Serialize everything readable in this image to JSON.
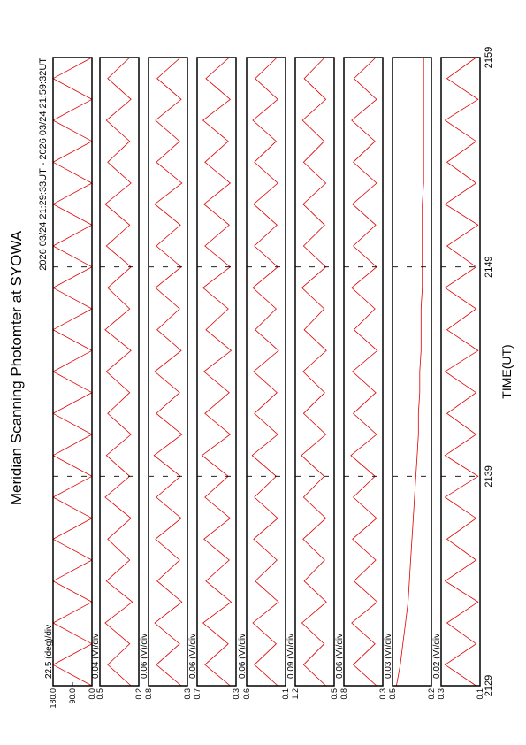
{
  "title": "Meridian Scanning Photomter at SYOWA",
  "time_range": "2026 03/24 21:29:33UT - 2026 03/24 21:59:32UT",
  "xlabel": "TIME(UT)",
  "x": [
    2129,
    2130,
    2131,
    2132,
    2133,
    2134,
    2135,
    2136,
    2137,
    2138,
    2139,
    2140,
    2141,
    2142,
    2143,
    2144,
    2145,
    2146,
    2147,
    2148,
    2149,
    2150,
    2151,
    2152,
    2153,
    2154,
    2155,
    2156,
    2157,
    2158,
    2159
  ],
  "xlim": [
    2129,
    2159
  ],
  "xticks": [
    2129,
    2139,
    2149,
    2159
  ],
  "chart_data": [
    {
      "type": "line",
      "scale": "22.5 (deg)/div",
      "color": "#e00000",
      "ylim": [
        0,
        180
      ],
      "yticks": [
        {
          "value": 180,
          "label": "180.0"
        },
        {
          "value": 90,
          "label": "90.0"
        },
        {
          "value": 0,
          "label": "0.0"
        }
      ],
      "values": [
        0,
        180,
        0,
        180,
        0,
        180,
        0,
        180,
        0,
        180,
        0,
        180,
        0,
        180,
        0,
        180,
        0,
        180,
        0,
        180,
        0,
        180,
        0,
        180,
        0,
        180,
        0,
        180,
        0,
        180,
        0
      ]
    },
    {
      "type": "line",
      "scale": "0.04 (V)/div",
      "color": "#e00000",
      "ylim": [
        0.2,
        0.5
      ],
      "yticks": [
        0.5,
        0.2
      ],
      "values": [
        0.26,
        0.44,
        0.27,
        0.46,
        0.25,
        0.45,
        0.27,
        0.44,
        0.26,
        0.46,
        0.27,
        0.45,
        0.26,
        0.44,
        0.27,
        0.45,
        0.26,
        0.46,
        0.27,
        0.44,
        0.26,
        0.45,
        0.27,
        0.46,
        0.26,
        0.44,
        0.27,
        0.45,
        0.26,
        0.44,
        0.27
      ]
    },
    {
      "type": "line",
      "scale": "0.06 (V)/div",
      "color": "#e00000",
      "ylim": [
        0.3,
        0.8
      ],
      "yticks": [
        0.8,
        0.3
      ],
      "values": [
        0.38,
        0.7,
        0.4,
        0.72,
        0.37,
        0.69,
        0.4,
        0.71,
        0.38,
        0.7,
        0.39,
        0.73,
        0.37,
        0.7,
        0.4,
        0.72,
        0.38,
        0.69,
        0.4,
        0.71,
        0.38,
        0.7,
        0.39,
        0.72,
        0.37,
        0.7,
        0.4,
        0.71,
        0.38,
        0.69,
        0.39
      ]
    },
    {
      "type": "line",
      "scale": "0.06 (V)/div",
      "color": "#e00000",
      "ylim": [
        0.3,
        0.7
      ],
      "yticks": [
        0.7,
        0.3
      ],
      "values": [
        0.36,
        0.62,
        0.38,
        0.64,
        0.35,
        0.61,
        0.37,
        0.63,
        0.36,
        0.62,
        0.38,
        0.65,
        0.36,
        0.62,
        0.37,
        0.63,
        0.35,
        0.61,
        0.38,
        0.64,
        0.36,
        0.62,
        0.37,
        0.63,
        0.36,
        0.62,
        0.38,
        0.64,
        0.36,
        0.61,
        0.37
      ]
    },
    {
      "type": "line",
      "scale": "0.06 (V)/div",
      "color": "#e00000",
      "ylim": [
        0.1,
        0.6
      ],
      "yticks": [
        0.6,
        0.1
      ],
      "values": [
        0.2,
        0.5,
        0.22,
        0.52,
        0.19,
        0.49,
        0.21,
        0.51,
        0.2,
        0.5,
        0.22,
        0.53,
        0.2,
        0.5,
        0.21,
        0.51,
        0.19,
        0.49,
        0.22,
        0.52,
        0.2,
        0.5,
        0.21,
        0.51,
        0.2,
        0.5,
        0.22,
        0.52,
        0.2,
        0.49,
        0.21
      ]
    },
    {
      "type": "line",
      "scale": "0.09 (V)/div",
      "color": "#e00000",
      "ylim": [
        0.5,
        1.2
      ],
      "yticks": [
        1.2,
        0.5
      ],
      "values": [
        0.65,
        1.05,
        0.68,
        1.08,
        0.64,
        1.04,
        0.67,
        1.06,
        0.65,
        1.05,
        0.68,
        1.09,
        0.65,
        1.05,
        0.67,
        1.06,
        0.64,
        1.04,
        0.68,
        1.08,
        0.65,
        1.05,
        0.67,
        1.06,
        0.65,
        1.05,
        0.68,
        1.07,
        0.65,
        1.04,
        0.67
      ]
    },
    {
      "type": "line",
      "scale": "0.06 (V)/div",
      "color": "#e00000",
      "ylim": [
        0.3,
        0.8
      ],
      "yticks": [
        0.8,
        0.3
      ],
      "values": [
        0.38,
        0.68,
        0.4,
        0.7,
        0.37,
        0.67,
        0.39,
        0.69,
        0.38,
        0.68,
        0.4,
        0.71,
        0.38,
        0.68,
        0.39,
        0.69,
        0.37,
        0.67,
        0.4,
        0.7,
        0.38,
        0.68,
        0.39,
        0.69,
        0.38,
        0.68,
        0.4,
        0.7,
        0.38,
        0.67,
        0.39
      ]
    },
    {
      "type": "line",
      "scale": "0.03 (V)/div",
      "color": "#e00000",
      "ylim": [
        0.2,
        0.5
      ],
      "yticks": [
        0.5,
        0.2
      ],
      "values": [
        0.47,
        0.44,
        0.42,
        0.4,
        0.38,
        0.37,
        0.36,
        0.35,
        0.34,
        0.33,
        0.32,
        0.31,
        0.3,
        0.3,
        0.29,
        0.29,
        0.28,
        0.28,
        0.28,
        0.27,
        0.27,
        0.27,
        0.27,
        0.27,
        0.26,
        0.26,
        0.26,
        0.26,
        0.26,
        0.26,
        0.26
      ]
    },
    {
      "type": "line",
      "scale": "0.02 (V)/div",
      "color": "#e00000",
      "ylim": [
        0.1,
        0.3
      ],
      "yticks": [
        0.3,
        0.1
      ],
      "values": [
        0.12,
        0.28,
        0.12,
        0.27,
        0.11,
        0.28,
        0.12,
        0.27,
        0.12,
        0.28,
        0.11,
        0.28,
        0.12,
        0.27,
        0.12,
        0.28,
        0.11,
        0.27,
        0.12,
        0.28,
        0.12,
        0.27,
        0.11,
        0.28,
        0.12,
        0.27,
        0.12,
        0.28,
        0.11,
        0.27,
        0.12
      ]
    }
  ]
}
